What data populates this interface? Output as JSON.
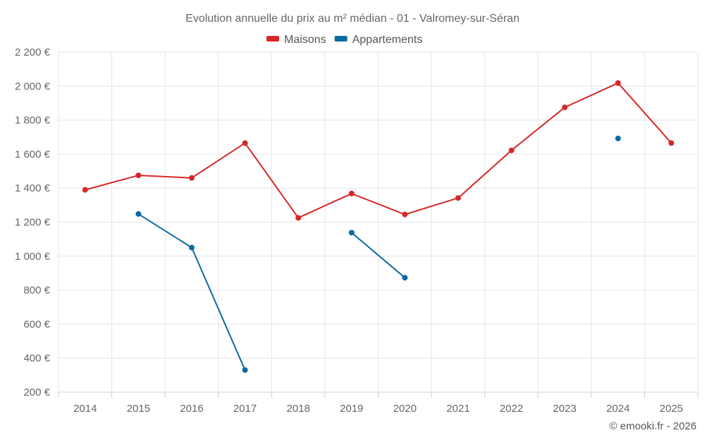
{
  "chart_data": {
    "type": "line",
    "title": "Evolution annuelle du prix au m² médian - 01 - Valromey-sur-Séran",
    "categories": [
      "2014",
      "2015",
      "2016",
      "2017",
      "2018",
      "2019",
      "2020",
      "2021",
      "2022",
      "2023",
      "2024",
      "2025"
    ],
    "ylim": [
      200,
      2200
    ],
    "yticks": [
      200,
      400,
      600,
      800,
      1000,
      1200,
      1400,
      1600,
      1800,
      2000,
      2200
    ],
    "ytick_labels": [
      "200 €",
      "400 €",
      "600 €",
      "800 €",
      "1 000 €",
      "1 200 €",
      "1 400 €",
      "1 600 €",
      "1 800 €",
      "2 000 €",
      "2 200 €"
    ],
    "grid": true,
    "legend_position": "top-center",
    "series": [
      {
        "name": "Maisons",
        "color": "#d62728",
        "values": [
          1390,
          1475,
          1460,
          1665,
          1225,
          1368,
          1245,
          1342,
          1622,
          1875,
          2018,
          1665
        ]
      },
      {
        "name": "Appartements",
        "color": "#0b6aa0",
        "values": [
          null,
          1248,
          1050,
          330,
          null,
          1138,
          873,
          null,
          null,
          null,
          1692,
          null
        ]
      }
    ],
    "credit": "© emooki.fr - 2026"
  }
}
